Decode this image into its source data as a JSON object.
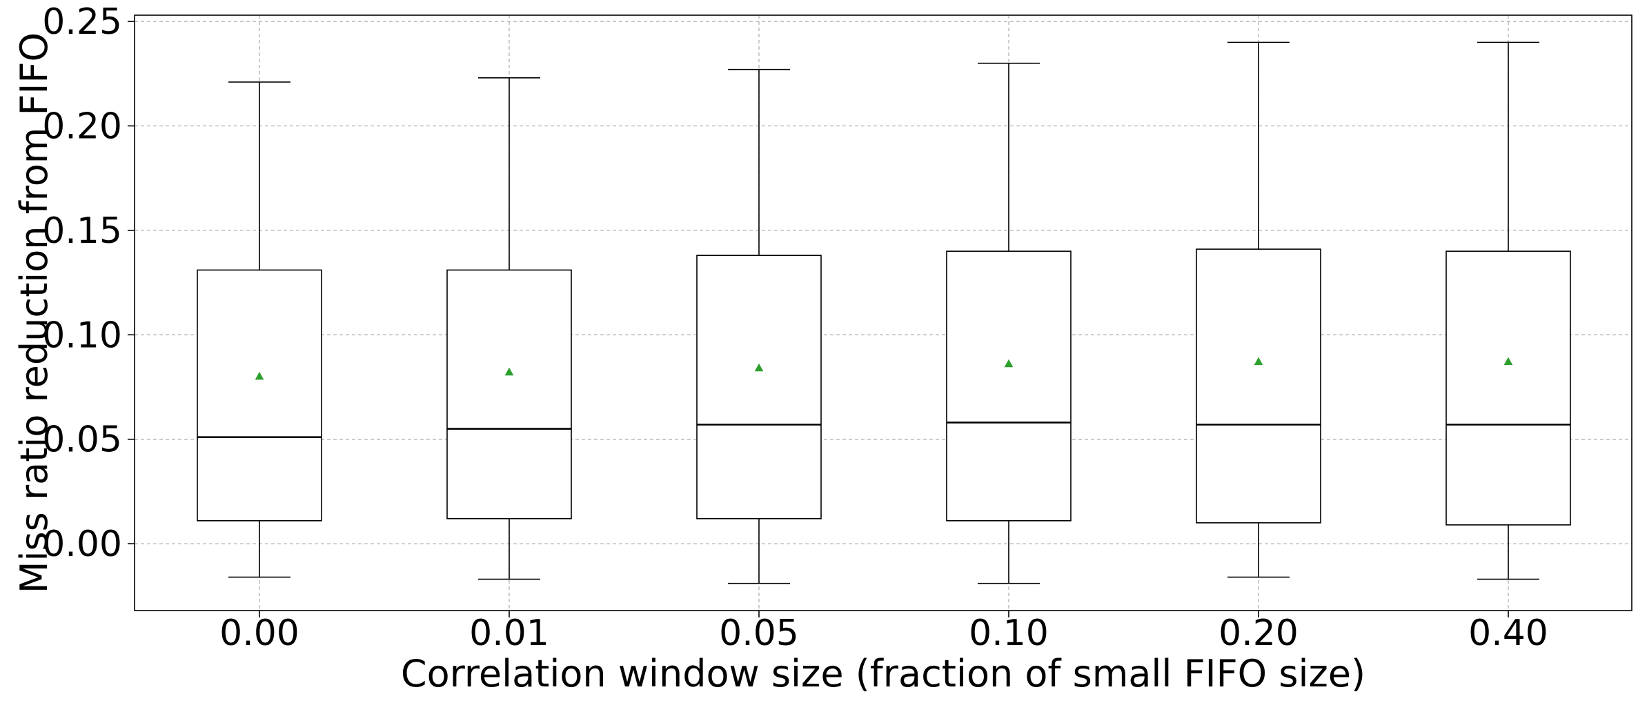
{
  "chart_data": {
    "type": "box",
    "title": "",
    "xlabel": "Correlation window size (fraction of small FIFO size)",
    "ylabel": "Miss ratio reduction from FIFO",
    "ylim": [
      -0.032,
      0.253
    ],
    "yticks": [
      "0.00",
      "0.05",
      "0.10",
      "0.15",
      "0.20",
      "0.25"
    ],
    "ytick_values": [
      0.0,
      0.05,
      0.1,
      0.15,
      0.2,
      0.25
    ],
    "categories": [
      "0.00",
      "0.01",
      "0.05",
      "0.10",
      "0.20",
      "0.40"
    ],
    "grid": true,
    "boxes": [
      {
        "category": "0.00",
        "whisker_low": -0.016,
        "q1": 0.011,
        "median": 0.051,
        "q3": 0.131,
        "whisker_high": 0.221,
        "mean": 0.08
      },
      {
        "category": "0.01",
        "whisker_low": -0.017,
        "q1": 0.012,
        "median": 0.055,
        "q3": 0.131,
        "whisker_high": 0.223,
        "mean": 0.082
      },
      {
        "category": "0.05",
        "whisker_low": -0.019,
        "q1": 0.012,
        "median": 0.057,
        "q3": 0.138,
        "whisker_high": 0.227,
        "mean": 0.084
      },
      {
        "category": "0.10",
        "whisker_low": -0.019,
        "q1": 0.011,
        "median": 0.058,
        "q3": 0.14,
        "whisker_high": 0.23,
        "mean": 0.086
      },
      {
        "category": "0.20",
        "whisker_low": -0.016,
        "q1": 0.01,
        "median": 0.057,
        "q3": 0.141,
        "whisker_high": 0.24,
        "mean": 0.087
      },
      {
        "category": "0.40",
        "whisker_low": -0.017,
        "q1": 0.009,
        "median": 0.057,
        "q3": 0.14,
        "whisker_high": 0.24,
        "mean": 0.087
      }
    ],
    "colors": {
      "box": "#000000",
      "median": "#000000",
      "mean_marker": "#2ca02c",
      "grid": "#b0b0b0"
    }
  }
}
